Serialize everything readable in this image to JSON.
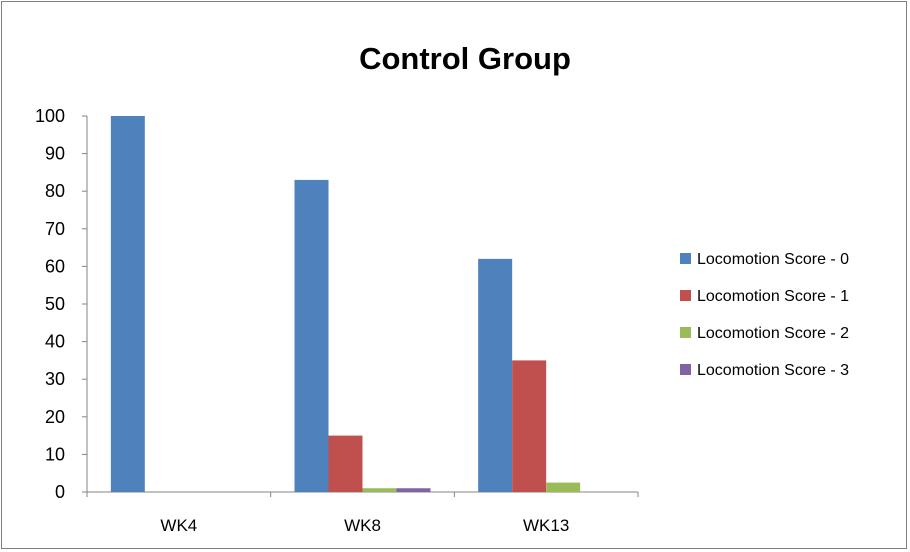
{
  "chart_data": {
    "type": "bar",
    "title": "Control Group",
    "categories": [
      "WK4",
      "WK8",
      "WK13"
    ],
    "series": [
      {
        "name": "Locomotion Score - 0",
        "color": "#4f81bd",
        "values": [
          100,
          83,
          62
        ]
      },
      {
        "name": "Locomotion Score - 1",
        "color": "#c0504d",
        "values": [
          0,
          15,
          35
        ]
      },
      {
        "name": "Locomotion Score - 2",
        "color": "#9bbb59",
        "values": [
          0,
          1,
          2.5
        ]
      },
      {
        "name": "Locomotion Score - 3",
        "color": "#8064a2",
        "values": [
          0,
          1,
          0
        ]
      }
    ],
    "yticks": [
      "0",
      "10",
      "20",
      "30",
      "40",
      "50",
      "60",
      "70",
      "80",
      "90",
      "100"
    ],
    "ylim": [
      0,
      100
    ],
    "grid": false,
    "legend": "right"
  }
}
